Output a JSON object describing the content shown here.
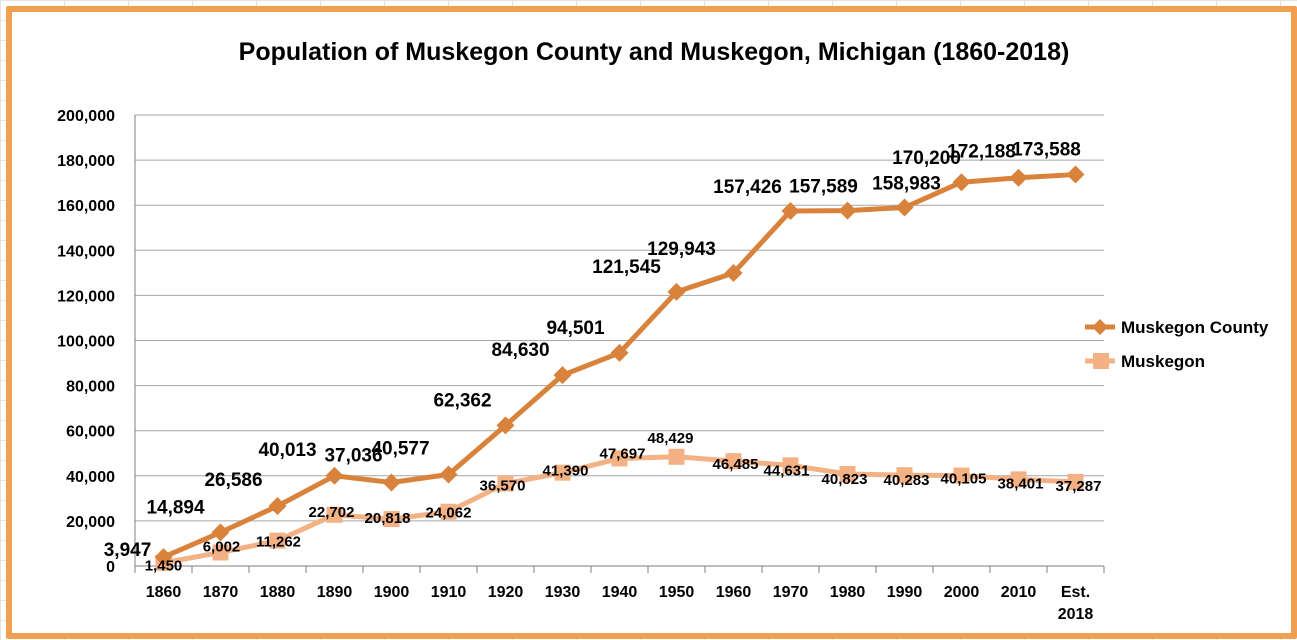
{
  "chart_data": {
    "type": "line",
    "title": "Population of Muskegon County and Muskegon, Michigan (1860-2018)",
    "xlabel": "",
    "ylabel": "",
    "categories": [
      "1860",
      "1870",
      "1880",
      "1890",
      "1900",
      "1910",
      "1920",
      "1930",
      "1940",
      "1950",
      "1960",
      "1970",
      "1980",
      "1990",
      "2000",
      "2010",
      "Est. 2018"
    ],
    "ylim": [
      0,
      200000
    ],
    "yticks": [
      0,
      20000,
      40000,
      60000,
      80000,
      100000,
      120000,
      140000,
      160000,
      180000,
      200000
    ],
    "ytick_labels": [
      "0",
      "20,000",
      "40,000",
      "60,000",
      "80,000",
      "100,000",
      "120,000",
      "140,000",
      "160,000",
      "180,000",
      "200,000"
    ],
    "grid": true,
    "legend_position": "right",
    "series": [
      {
        "name": "Muskegon County",
        "color": "#d9823b",
        "marker": "diamond",
        "values": [
          3947,
          14894,
          26586,
          40013,
          37036,
          40577,
          62362,
          84630,
          94501,
          121545,
          129943,
          157426,
          157589,
          158983,
          170200,
          172188,
          173588
        ],
        "labels": [
          "3,947",
          "14,894",
          "26,586",
          "40,013",
          "37,036",
          "40,577",
          "62,362",
          "84,630",
          "94,501",
          "121,545",
          "129,943",
          "157,426",
          "157,589",
          "158,983",
          "170,200",
          "172,188",
          "173,588"
        ]
      },
      {
        "name": "Muskegon",
        "color": "#f4b183",
        "marker": "square",
        "values": [
          1450,
          6002,
          11262,
          22702,
          20818,
          24062,
          36570,
          41390,
          47697,
          48429,
          46485,
          44631,
          40823,
          40283,
          40105,
          38401,
          37287
        ],
        "labels": [
          "1,450",
          "6,002",
          "11,262",
          "22,702",
          "20,818",
          "24,062",
          "36,570",
          "41,390",
          "47,697",
          "48,429",
          "46,485",
          "44,631",
          "40,823",
          "40,283",
          "40,105",
          "38,401",
          "37,287"
        ]
      }
    ]
  }
}
